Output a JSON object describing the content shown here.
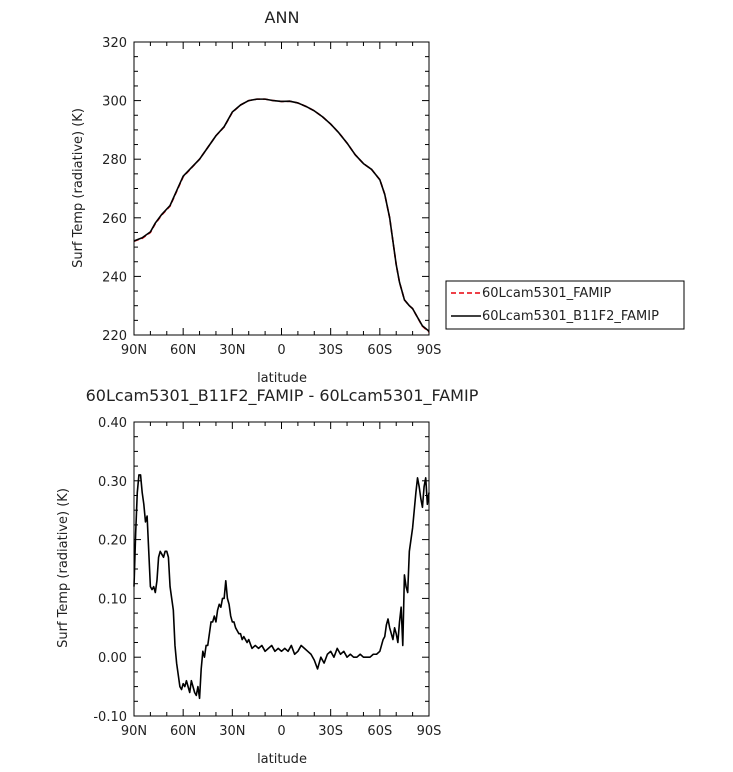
{
  "chart_data": [
    {
      "type": "line",
      "title": "ANN",
      "xlabel": "latitude",
      "ylabel": "Surf Temp (radiative) (K)",
      "xlim": [
        90,
        -90
      ],
      "ylim": [
        220,
        320
      ],
      "x_ticks": [
        90,
        60,
        30,
        0,
        -30,
        -60,
        -90
      ],
      "x_tick_labels": [
        "90N",
        "60N",
        "30N",
        "0",
        "30S",
        "60S",
        "90S"
      ],
      "y_ticks": [
        220,
        240,
        260,
        280,
        300,
        320
      ],
      "y_tick_labels": [
        "220",
        "240",
        "260",
        "280",
        "300",
        "320"
      ],
      "grid": false,
      "legend_position": "right",
      "series": [
        {
          "name": "60Lcam5301_FAMIP",
          "color": "#e8000b",
          "dash": "dashed",
          "x": [
            90,
            85,
            80,
            77,
            73,
            68,
            64,
            60,
            55,
            50,
            45,
            40,
            35,
            30,
            25,
            20,
            15,
            10,
            5,
            0,
            -5,
            -10,
            -15,
            -20,
            -25,
            -30,
            -35,
            -40,
            -45,
            -50,
            -55,
            -60,
            -63,
            -66,
            -68,
            -70,
            -72,
            -75,
            -78,
            -80,
            -83,
            -86,
            -88,
            -90
          ],
          "y": [
            252,
            253,
            255,
            258,
            261,
            264,
            269,
            274,
            277,
            280,
            284,
            288,
            291,
            296,
            298.5,
            300,
            300.5,
            300.5,
            300,
            299.7,
            299.8,
            299.2,
            298,
            296.5,
            294.5,
            292,
            289,
            285.5,
            281.5,
            278.5,
            276.5,
            273,
            268,
            260,
            252,
            244,
            238,
            232,
            230,
            229,
            226,
            223,
            222,
            221
          ]
        },
        {
          "name": "60Lcam5301_B11F2_FAMIP",
          "color": "#000000",
          "dash": "solid",
          "x": [
            90,
            85,
            80,
            77,
            73,
            68,
            64,
            60,
            55,
            50,
            45,
            40,
            35,
            30,
            25,
            20,
            15,
            10,
            5,
            0,
            -5,
            -10,
            -15,
            -20,
            -25,
            -30,
            -35,
            -40,
            -45,
            -50,
            -55,
            -60,
            -63,
            -66,
            -68,
            -70,
            -72,
            -75,
            -78,
            -80,
            -83,
            -86,
            -88,
            -90
          ],
          "y": [
            252.1,
            253.2,
            255.2,
            258.2,
            261.2,
            264.2,
            269.2,
            274.2,
            277.1,
            280,
            284,
            288,
            291.1,
            296.1,
            298.5,
            300,
            300.5,
            300.5,
            300,
            299.7,
            299.8,
            299.2,
            298,
            296.5,
            294.5,
            292,
            289,
            285.5,
            281.5,
            278.5,
            276.5,
            273,
            268,
            260,
            252,
            244,
            238,
            232,
            230,
            229,
            226,
            223.1,
            222.2,
            221.3
          ]
        }
      ]
    },
    {
      "type": "line",
      "title": "60Lcam5301_B11F2_FAMIP - 60Lcam5301_FAMIP",
      "xlabel": "latitude",
      "ylabel": "Surf Temp (radiative) (K)",
      "xlim": [
        90,
        -90
      ],
      "ylim": [
        -0.1,
        0.4
      ],
      "x_ticks": [
        90,
        60,
        30,
        0,
        -30,
        -60,
        -90
      ],
      "x_tick_labels": [
        "90N",
        "60N",
        "30N",
        "0",
        "30S",
        "60S",
        "90S"
      ],
      "y_ticks": [
        -0.1,
        0,
        0.1,
        0.2,
        0.3,
        0.4
      ],
      "y_tick_labels": [
        "-0.10",
        "0.00",
        "0.10",
        "0.20",
        "0.30",
        "0.40"
      ],
      "grid": false,
      "series": [
        {
          "color": "#000000",
          "dash": "solid",
          "x": [
            90,
            89,
            88,
            87,
            86,
            85,
            84,
            83,
            82,
            81,
            80,
            79,
            78,
            77,
            76,
            75,
            74,
            73,
            72,
            71,
            70,
            69,
            68,
            67,
            66,
            65,
            64,
            63,
            62,
            61,
            60,
            59,
            58,
            57,
            56,
            55,
            54,
            53,
            52,
            51,
            50,
            49,
            48,
            47,
            46,
            45,
            44,
            43,
            42,
            41,
            40,
            39,
            38,
            37,
            36,
            35,
            34,
            33,
            32,
            31,
            30,
            29,
            28,
            27,
            26,
            25,
            24,
            23,
            22,
            21,
            20,
            18,
            16,
            14,
            12,
            10,
            8,
            6,
            4,
            2,
            0,
            -2,
            -4,
            -6,
            -8,
            -10,
            -12,
            -14,
            -16,
            -18,
            -20,
            -22,
            -24,
            -26,
            -28,
            -30,
            -32,
            -34,
            -36,
            -38,
            -40,
            -42,
            -44,
            -46,
            -48,
            -50,
            -52,
            -54,
            -56,
            -58,
            -60,
            -61,
            -62,
            -63,
            -64,
            -65,
            -66,
            -67,
            -68,
            -69,
            -70,
            -71,
            -72,
            -73,
            -74,
            -75,
            -76,
            -77,
            -78,
            -79,
            -80,
            -81,
            -82,
            -83,
            -84,
            -85,
            -86,
            -87,
            -88,
            -89,
            -90
          ],
          "y": [
            0.12,
            0.21,
            0.28,
            0.31,
            0.31,
            0.28,
            0.26,
            0.23,
            0.24,
            0.18,
            0.12,
            0.115,
            0.12,
            0.11,
            0.13,
            0.17,
            0.18,
            0.175,
            0.17,
            0.18,
            0.18,
            0.17,
            0.12,
            0.1,
            0.08,
            0.02,
            -0.01,
            -0.03,
            -0.05,
            -0.055,
            -0.045,
            -0.05,
            -0.04,
            -0.05,
            -0.06,
            -0.04,
            -0.05,
            -0.06,
            -0.065,
            -0.05,
            -0.07,
            -0.02,
            0.01,
            0.0,
            0.02,
            0.02,
            0.04,
            0.06,
            0.06,
            0.07,
            0.06,
            0.08,
            0.09,
            0.085,
            0.1,
            0.1,
            0.13,
            0.1,
            0.09,
            0.07,
            0.06,
            0.06,
            0.05,
            0.045,
            0.04,
            0.04,
            0.03,
            0.035,
            0.03,
            0.025,
            0.03,
            0.015,
            0.02,
            0.015,
            0.02,
            0.01,
            0.015,
            0.02,
            0.01,
            0.015,
            0.01,
            0.015,
            0.01,
            0.02,
            0.005,
            0.01,
            0.02,
            0.015,
            0.01,
            0.005,
            -0.005,
            -0.02,
            0.0,
            -0.01,
            0.005,
            0.01,
            0.0,
            0.015,
            0.005,
            0.01,
            0.0,
            0.005,
            0.0,
            0.0,
            0.005,
            0.0,
            0.0,
            0.0,
            0.005,
            0.005,
            0.01,
            0.02,
            0.03,
            0.035,
            0.055,
            0.065,
            0.05,
            0.04,
            0.03,
            0.05,
            0.04,
            0.025,
            0.06,
            0.085,
            0.02,
            0.14,
            0.12,
            0.11,
            0.18,
            0.2,
            0.22,
            0.25,
            0.28,
            0.305,
            0.29,
            0.27,
            0.255,
            0.29,
            0.305,
            0.26,
            0.28
          ]
        }
      ]
    }
  ]
}
